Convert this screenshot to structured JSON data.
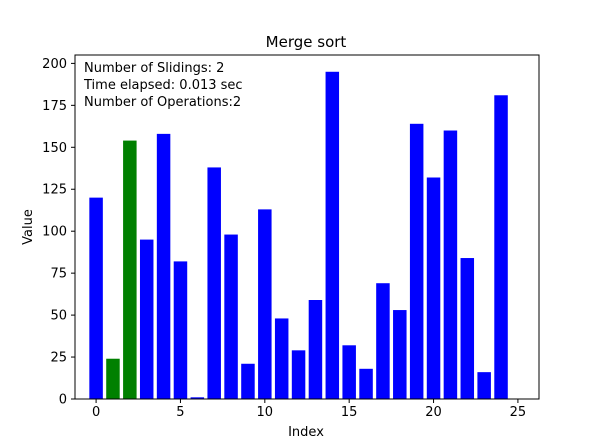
{
  "chart_data": {
    "type": "bar",
    "title": "Merge sort",
    "xlabel": "Index",
    "ylabel": "Value",
    "xlim": [
      -1.25,
      26.25
    ],
    "ylim": [
      0,
      205
    ],
    "xticks": [
      0,
      5,
      10,
      15,
      20,
      25
    ],
    "yticks": [
      0,
      25,
      50,
      75,
      100,
      125,
      150,
      175,
      200
    ],
    "grid": false,
    "colors": {
      "default": "#0000ff",
      "highlight": "#008000"
    },
    "x": [
      0,
      1,
      2,
      3,
      4,
      5,
      6,
      7,
      8,
      9,
      10,
      11,
      12,
      13,
      14,
      15,
      16,
      17,
      18,
      19,
      20,
      21,
      22,
      23,
      24,
      25
    ],
    "values": [
      120,
      24,
      154,
      95,
      158,
      82,
      1,
      138,
      98,
      21,
      113,
      48,
      29,
      59,
      195,
      32,
      18,
      69,
      53,
      164,
      132,
      160,
      84,
      16,
      181,
      0
    ],
    "highlighted_indices": [
      1,
      2
    ],
    "annotations": [
      "Number of Slidings: 2",
      "Time elapsed: 0.013 sec",
      "Number of Operations:2"
    ]
  }
}
